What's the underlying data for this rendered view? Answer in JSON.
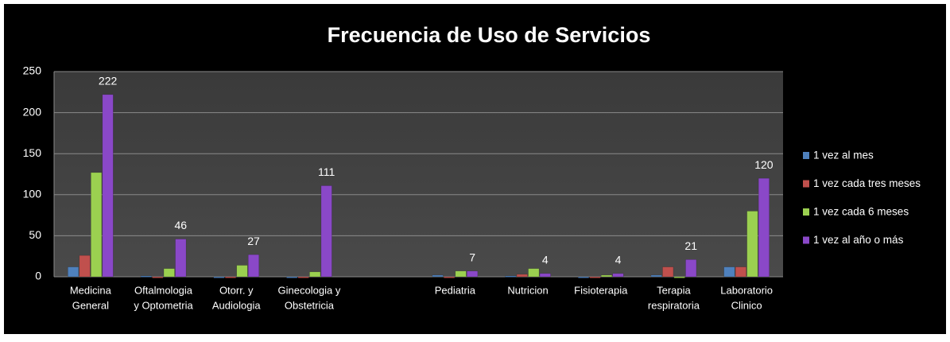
{
  "chart_data": {
    "type": "bar",
    "title": "Frecuencia de Uso de Servicios",
    "categories": [
      [
        "Medicina",
        "General"
      ],
      [
        "Oftalmologia",
        "y Optometria"
      ],
      [
        "Otorr. y",
        "Audiologia"
      ],
      [
        "Ginecologia y",
        "Obstetricia"
      ],
      null,
      [
        "Pediatria"
      ],
      [
        "Nutricion"
      ],
      [
        "Fisioterapia"
      ],
      [
        "Terapia",
        "respiratoria"
      ],
      [
        "Laboratorio",
        "Clinico"
      ]
    ],
    "series": [
      {
        "name": "1 vez al mes",
        "color": "#4f81bd",
        "values": [
          12,
          1,
          0,
          0,
          null,
          2,
          1,
          0,
          2,
          12
        ]
      },
      {
        "name": "1 vez cada tres meses",
        "color": "#c0504d",
        "values": [
          26,
          0,
          0,
          0,
          null,
          0,
          3,
          0,
          12,
          12
        ]
      },
      {
        "name": "1 vez cada 6 meses",
        "color": "#9bd050",
        "values": [
          127,
          10,
          14,
          6,
          null,
          7,
          10,
          2,
          0,
          80
        ]
      },
      {
        "name": "1 vez al año o más",
        "color": "#8a48c8",
        "values": [
          222,
          46,
          27,
          111,
          null,
          7,
          4,
          4,
          21,
          120
        ],
        "show_labels": true
      }
    ],
    "ylim": [
      0,
      250
    ],
    "yticks": [
      0,
      50,
      100,
      150,
      200,
      250
    ],
    "grid": true,
    "legend": "right"
  }
}
